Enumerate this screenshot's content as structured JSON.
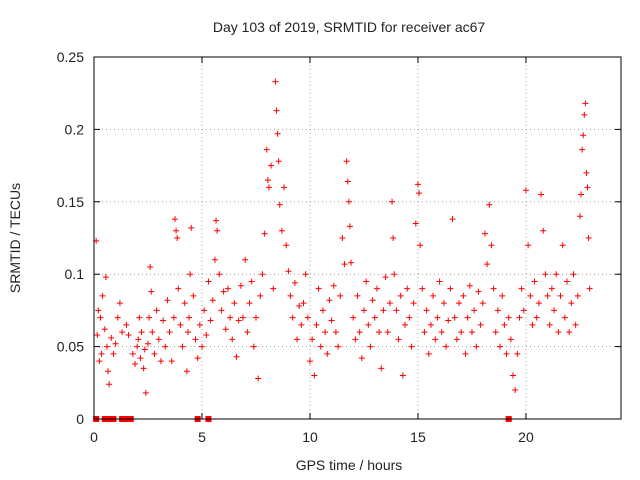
{
  "chart_data": {
    "type": "scatter",
    "title": "Day 103 of 2019, SRMTID for receiver ac67",
    "xlabel": "GPS time / hours",
    "ylabel": "SRMTID / TECUs",
    "xlim": [
      0,
      24.4
    ],
    "ylim": [
      0,
      0.25
    ],
    "x_ticks": [
      0,
      5,
      10,
      15,
      20
    ],
    "y_ticks": [
      0,
      0.05,
      0.1,
      0.15,
      0.2,
      0.25
    ],
    "x_tick_labels": [
      "0",
      "5",
      "10",
      "15",
      "20"
    ],
    "y_tick_labels": [
      "0",
      "0.05",
      "0.1",
      "0.15",
      "0.2",
      "0.25"
    ],
    "grid": true,
    "marker": "plus",
    "color": "#ff0000",
    "series": [
      {
        "name": "SRMTID",
        "points": [
          [
            0.1,
            0.123
          ],
          [
            0.15,
            0.058
          ],
          [
            0.2,
            0.075
          ],
          [
            0.25,
            0.04
          ],
          [
            0.3,
            0.07
          ],
          [
            0.35,
            0.045
          ],
          [
            0.4,
            0.085
          ],
          [
            0.5,
            0.062
          ],
          [
            0.55,
            0.098
          ],
          [
            0.6,
            0.05
          ],
          [
            0.65,
            0.033
          ],
          [
            0.7,
            0.024
          ],
          [
            0.8,
            0.056
          ],
          [
            0.9,
            0.045
          ],
          [
            1.0,
            0.052
          ],
          [
            1.1,
            0.07
          ],
          [
            1.2,
            0.08
          ],
          [
            1.3,
            0.06
          ],
          [
            1.5,
            0.065
          ],
          [
            1.6,
            0.058
          ],
          [
            1.8,
            0.045
          ],
          [
            1.9,
            0.038
          ],
          [
            2.0,
            0.05
          ],
          [
            2.05,
            0.055
          ],
          [
            2.1,
            0.07
          ],
          [
            2.15,
            0.042
          ],
          [
            2.2,
            0.06
          ],
          [
            2.3,
            0.035
          ],
          [
            2.35,
            0.048
          ],
          [
            2.4,
            0.018
          ],
          [
            2.5,
            0.052
          ],
          [
            2.55,
            0.07
          ],
          [
            2.6,
            0.105
          ],
          [
            2.65,
            0.088
          ],
          [
            2.7,
            0.06
          ],
          [
            2.8,
            0.045
          ],
          [
            2.9,
            0.075
          ],
          [
            3.0,
            0.055
          ],
          [
            3.1,
            0.04
          ],
          [
            3.2,
            0.068
          ],
          [
            3.3,
            0.05
          ],
          [
            3.4,
            0.082
          ],
          [
            3.5,
            0.06
          ],
          [
            3.6,
            0.04
          ],
          [
            3.7,
            0.07
          ],
          [
            3.75,
            0.138
          ],
          [
            3.8,
            0.13
          ],
          [
            3.85,
            0.125
          ],
          [
            3.9,
            0.09
          ],
          [
            4.0,
            0.065
          ],
          [
            4.1,
            0.05
          ],
          [
            4.2,
            0.08
          ],
          [
            4.3,
            0.033
          ],
          [
            4.35,
            0.06
          ],
          [
            4.4,
            0.07
          ],
          [
            4.45,
            0.1
          ],
          [
            4.5,
            0.132
          ],
          [
            4.6,
            0.085
          ],
          [
            4.7,
            0.055
          ],
          [
            4.8,
            0.042
          ],
          [
            4.9,
            0.065
          ],
          [
            5.0,
            0.05
          ],
          [
            5.1,
            0.075
          ],
          [
            5.2,
            0.058
          ],
          [
            5.3,
            0.095
          ],
          [
            5.4,
            0.068
          ],
          [
            5.5,
            0.082
          ],
          [
            5.6,
            0.11
          ],
          [
            5.65,
            0.137
          ],
          [
            5.7,
            0.13
          ],
          [
            5.8,
            0.1
          ],
          [
            5.9,
            0.075
          ],
          [
            6.0,
            0.088
          ],
          [
            6.1,
            0.062
          ],
          [
            6.2,
            0.09
          ],
          [
            6.3,
            0.07
          ],
          [
            6.4,
            0.055
          ],
          [
            6.5,
            0.08
          ],
          [
            6.6,
            0.043
          ],
          [
            6.7,
            0.068
          ],
          [
            6.8,
            0.092
          ],
          [
            6.9,
            0.07
          ],
          [
            7.0,
            0.11
          ],
          [
            7.1,
            0.06
          ],
          [
            7.2,
            0.08
          ],
          [
            7.3,
            0.095
          ],
          [
            7.4,
            0.05
          ],
          [
            7.5,
            0.07
          ],
          [
            7.6,
            0.028
          ],
          [
            7.7,
            0.085
          ],
          [
            7.8,
            0.1
          ],
          [
            7.9,
            0.128
          ],
          [
            8.0,
            0.186
          ],
          [
            8.05,
            0.165
          ],
          [
            8.1,
            0.16
          ],
          [
            8.2,
            0.175
          ],
          [
            8.3,
            0.09
          ],
          [
            8.4,
            0.233
          ],
          [
            8.45,
            0.213
          ],
          [
            8.5,
            0.197
          ],
          [
            8.55,
            0.178
          ],
          [
            8.6,
            0.148
          ],
          [
            8.7,
            0.13
          ],
          [
            8.8,
            0.16
          ],
          [
            8.9,
            0.12
          ],
          [
            9.0,
            0.102
          ],
          [
            9.1,
            0.085
          ],
          [
            9.2,
            0.07
          ],
          [
            9.3,
            0.094
          ],
          [
            9.4,
            0.055
          ],
          [
            9.5,
            0.078
          ],
          [
            9.6,
            0.065
          ],
          [
            9.7,
            0.08
          ],
          [
            9.8,
            0.1
          ],
          [
            9.9,
            0.07
          ],
          [
            10.0,
            0.04
          ],
          [
            10.1,
            0.055
          ],
          [
            10.2,
            0.03
          ],
          [
            10.3,
            0.065
          ],
          [
            10.4,
            0.09
          ],
          [
            10.5,
            0.05
          ],
          [
            10.6,
            0.075
          ],
          [
            10.7,
            0.06
          ],
          [
            10.8,
            0.045
          ],
          [
            10.9,
            0.082
          ],
          [
            11.0,
            0.068
          ],
          [
            11.1,
            0.092
          ],
          [
            11.2,
            0.06
          ],
          [
            11.3,
            0.05
          ],
          [
            11.4,
            0.085
          ],
          [
            11.5,
            0.125
          ],
          [
            11.6,
            0.107
          ],
          [
            11.7,
            0.178
          ],
          [
            11.75,
            0.164
          ],
          [
            11.8,
            0.15
          ],
          [
            11.85,
            0.133
          ],
          [
            11.9,
            0.108
          ],
          [
            12.0,
            0.07
          ],
          [
            12.1,
            0.055
          ],
          [
            12.2,
            0.085
          ],
          [
            12.3,
            0.06
          ],
          [
            12.4,
            0.042
          ],
          [
            12.5,
            0.075
          ],
          [
            12.6,
            0.095
          ],
          [
            12.7,
            0.065
          ],
          [
            12.8,
            0.05
          ],
          [
            12.9,
            0.082
          ],
          [
            13.0,
            0.07
          ],
          [
            13.1,
            0.09
          ],
          [
            13.2,
            0.06
          ],
          [
            13.3,
            0.035
          ],
          [
            13.4,
            0.075
          ],
          [
            13.5,
            0.098
          ],
          [
            13.6,
            0.06
          ],
          [
            13.7,
            0.08
          ],
          [
            13.8,
            0.15
          ],
          [
            13.85,
            0.125
          ],
          [
            13.9,
            0.1
          ],
          [
            14.0,
            0.075
          ],
          [
            14.1,
            0.055
          ],
          [
            14.2,
            0.085
          ],
          [
            14.3,
            0.03
          ],
          [
            14.4,
            0.065
          ],
          [
            14.5,
            0.09
          ],
          [
            14.6,
            0.07
          ],
          [
            14.7,
            0.05
          ],
          [
            14.8,
            0.08
          ],
          [
            14.9,
            0.135
          ],
          [
            15.0,
            0.162
          ],
          [
            15.05,
            0.156
          ],
          [
            15.1,
            0.12
          ],
          [
            15.2,
            0.09
          ],
          [
            15.3,
            0.06
          ],
          [
            15.4,
            0.075
          ],
          [
            15.5,
            0.045
          ],
          [
            15.6,
            0.065
          ],
          [
            15.7,
            0.085
          ],
          [
            15.8,
            0.055
          ],
          [
            15.9,
            0.07
          ],
          [
            16.0,
            0.095
          ],
          [
            16.1,
            0.06
          ],
          [
            16.2,
            0.08
          ],
          [
            16.3,
            0.05
          ],
          [
            16.4,
            0.068
          ],
          [
            16.5,
            0.09
          ],
          [
            16.6,
            0.138
          ],
          [
            16.7,
            0.07
          ],
          [
            16.8,
            0.055
          ],
          [
            16.9,
            0.08
          ],
          [
            17.0,
            0.06
          ],
          [
            17.1,
            0.085
          ],
          [
            17.2,
            0.045
          ],
          [
            17.3,
            0.07
          ],
          [
            17.4,
            0.092
          ],
          [
            17.5,
            0.06
          ],
          [
            17.6,
            0.075
          ],
          [
            17.7,
            0.05
          ],
          [
            17.8,
            0.088
          ],
          [
            17.9,
            0.065
          ],
          [
            18.0,
            0.08
          ],
          [
            18.1,
            0.128
          ],
          [
            18.2,
            0.107
          ],
          [
            18.3,
            0.148
          ],
          [
            18.4,
            0.12
          ],
          [
            18.5,
            0.09
          ],
          [
            18.6,
            0.06
          ],
          [
            18.7,
            0.075
          ],
          [
            18.8,
            0.05
          ],
          [
            18.9,
            0.085
          ],
          [
            19.0,
            0.065
          ],
          [
            19.1,
            0.045
          ],
          [
            19.2,
            0.07
          ],
          [
            19.3,
            0.055
          ],
          [
            19.4,
            0.03
          ],
          [
            19.5,
            0.02
          ],
          [
            19.6,
            0.045
          ],
          [
            19.7,
            0.07
          ],
          [
            19.8,
            0.09
          ],
          [
            19.9,
            0.075
          ],
          [
            20.0,
            0.158
          ],
          [
            20.1,
            0.12
          ],
          [
            20.2,
            0.085
          ],
          [
            20.3,
            0.065
          ],
          [
            20.4,
            0.095
          ],
          [
            20.5,
            0.07
          ],
          [
            20.6,
            0.08
          ],
          [
            20.7,
            0.155
          ],
          [
            20.8,
            0.13
          ],
          [
            20.9,
            0.1
          ],
          [
            21.0,
            0.085
          ],
          [
            21.1,
            0.065
          ],
          [
            21.2,
            0.09
          ],
          [
            21.3,
            0.075
          ],
          [
            21.4,
            0.1
          ],
          [
            21.5,
            0.06
          ],
          [
            21.6,
            0.085
          ],
          [
            21.7,
            0.12
          ],
          [
            21.8,
            0.07
          ],
          [
            21.9,
            0.095
          ],
          [
            22.0,
            0.06
          ],
          [
            22.1,
            0.08
          ],
          [
            22.2,
            0.1
          ],
          [
            22.3,
            0.065
          ],
          [
            22.4,
            0.085
          ],
          [
            22.5,
            0.14
          ],
          [
            22.55,
            0.155
          ],
          [
            22.6,
            0.186
          ],
          [
            22.65,
            0.196
          ],
          [
            22.7,
            0.21
          ],
          [
            22.75,
            0.218
          ],
          [
            22.8,
            0.17
          ],
          [
            22.85,
            0.16
          ],
          [
            22.9,
            0.125
          ],
          [
            22.95,
            0.09
          ]
        ]
      }
    ],
    "zero_points": [
      0.1,
      0.5,
      0.6,
      0.8,
      0.9,
      1.3,
      1.5,
      1.6,
      1.7,
      4.8,
      5.3,
      19.2
    ]
  }
}
